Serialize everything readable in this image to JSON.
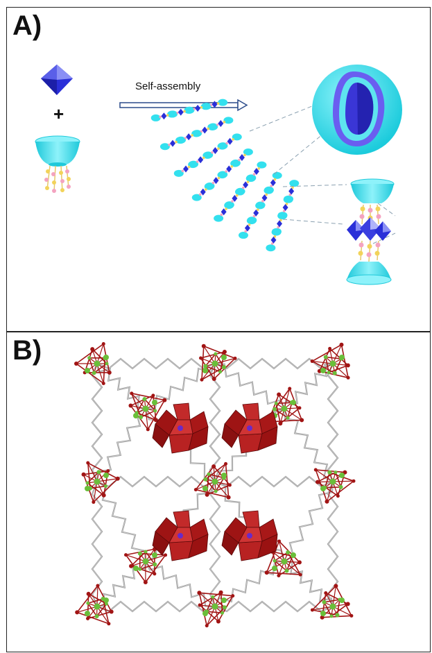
{
  "panel_a": {
    "letter": "A)",
    "arrow_label": "Self-assembly",
    "plus": "+"
  },
  "panel_b": {
    "letter": "B)"
  },
  "colors": {
    "cyan": "#33e0ee",
    "blue_octahedron": "#2a2fd8",
    "violet_ring": "#6a5ef0",
    "linker_pink": "#f4a3c0",
    "linker_yellow": "#f2d35a",
    "framework_green": "#6abf3a",
    "framework_red": "#a11414",
    "framework_grey": "#9a9a9a",
    "polyoxometalate_red": "#b41c1c"
  }
}
